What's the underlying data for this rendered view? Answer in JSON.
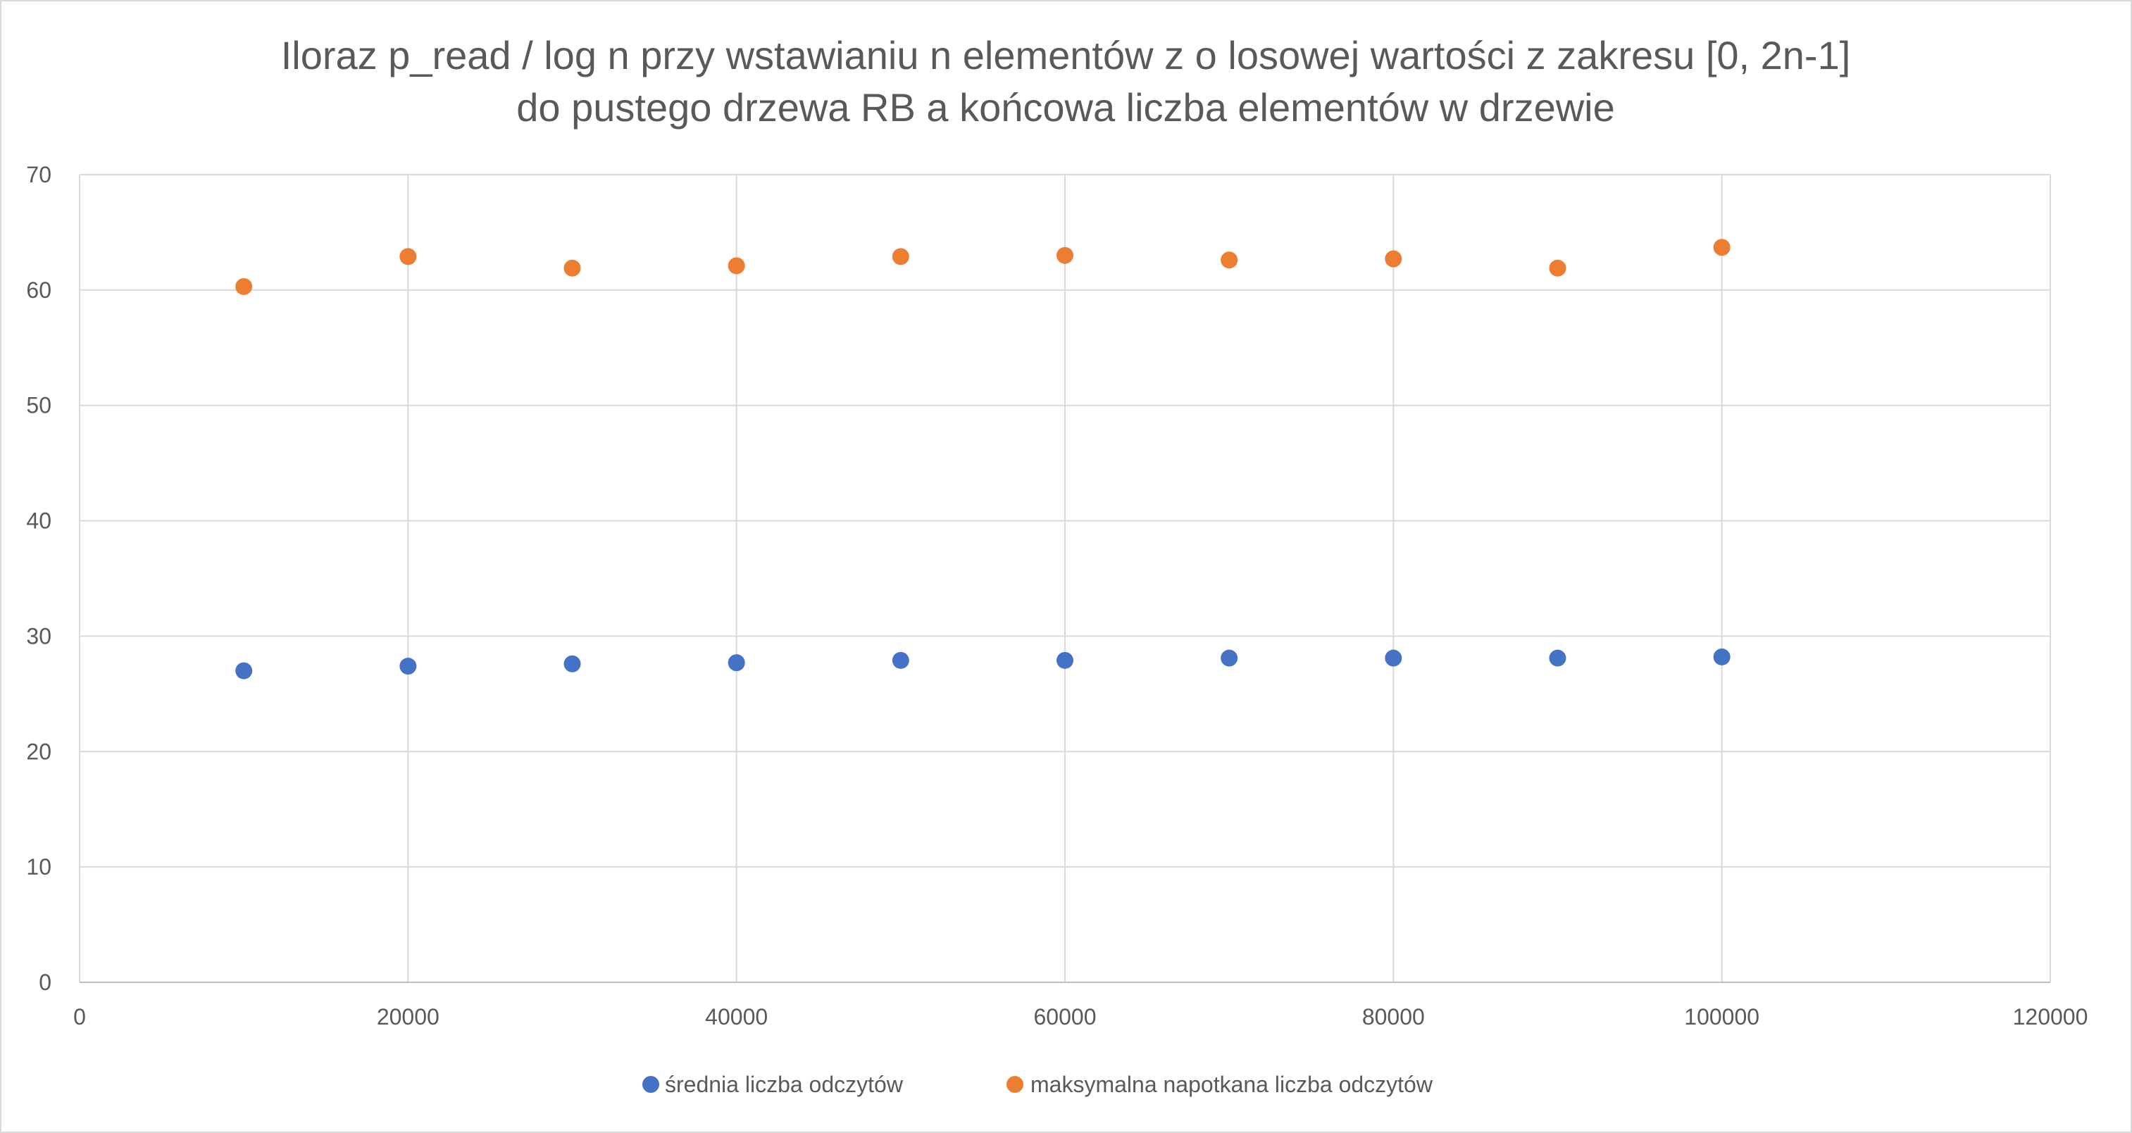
{
  "chart_data": {
    "type": "scatter",
    "title": [
      "Iloraz p_read / log n przy wstawianiu n elementów z o losowej wartości z zakresu [0, 2n-1]",
      "do pustego drzewa RB a końcowa liczba elementów w drzewie"
    ],
    "xlabel": "",
    "ylabel": "",
    "xlim": [
      0,
      120000
    ],
    "ylim": [
      0,
      70
    ],
    "x_ticks": [
      "0",
      "20000",
      "40000",
      "60000",
      "80000",
      "100000",
      "120000"
    ],
    "y_ticks": [
      "0",
      "10",
      "20",
      "30",
      "40",
      "50",
      "60",
      "70"
    ],
    "grid": true,
    "legend": "bottom",
    "series": [
      {
        "name": "średnia liczba odczytów",
        "color": "#4472c4",
        "points": [
          {
            "x": 10000,
            "y": 27.0
          },
          {
            "x": 20000,
            "y": 27.4
          },
          {
            "x": 30000,
            "y": 27.6
          },
          {
            "x": 40000,
            "y": 27.7
          },
          {
            "x": 50000,
            "y": 27.9
          },
          {
            "x": 60000,
            "y": 27.9
          },
          {
            "x": 70000,
            "y": 28.1
          },
          {
            "x": 80000,
            "y": 28.1
          },
          {
            "x": 90000,
            "y": 28.1
          },
          {
            "x": 100000,
            "y": 28.2
          }
        ]
      },
      {
        "name": "maksymalna napotkana liczba odczytów",
        "color": "#ed7d31",
        "points": [
          {
            "x": 10000,
            "y": 60.3
          },
          {
            "x": 20000,
            "y": 62.9
          },
          {
            "x": 30000,
            "y": 61.9
          },
          {
            "x": 40000,
            "y": 62.1
          },
          {
            "x": 50000,
            "y": 62.9
          },
          {
            "x": 60000,
            "y": 63.0
          },
          {
            "x": 70000,
            "y": 62.6
          },
          {
            "x": 80000,
            "y": 62.7
          },
          {
            "x": 90000,
            "y": 61.9
          },
          {
            "x": 100000,
            "y": 63.7
          }
        ]
      }
    ]
  }
}
